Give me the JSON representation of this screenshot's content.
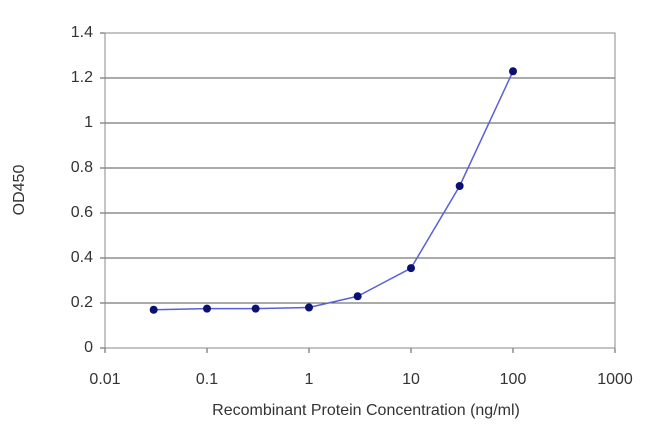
{
  "chart_data": {
    "type": "line",
    "x_label": "Recombinant Protein Concentration (ng/ml)",
    "y_label": "OD450",
    "x": [
      0.03,
      0.1,
      0.3,
      1,
      3,
      10,
      30,
      100
    ],
    "values": [
      0.17,
      0.175,
      0.175,
      0.18,
      0.23,
      0.355,
      0.72,
      1.23
    ],
    "color": "#5b5fd6",
    "marker_color": "#0a1170",
    "x_log": true,
    "xlim": [
      0.01,
      1000
    ],
    "xticks": [
      0.01,
      0.1,
      1,
      10,
      100,
      1000
    ],
    "ylim": [
      0,
      1.4
    ],
    "yticks": [
      0,
      0.2,
      0.4,
      0.6,
      0.8,
      1,
      1.2,
      1.4
    ],
    "grid": true
  }
}
